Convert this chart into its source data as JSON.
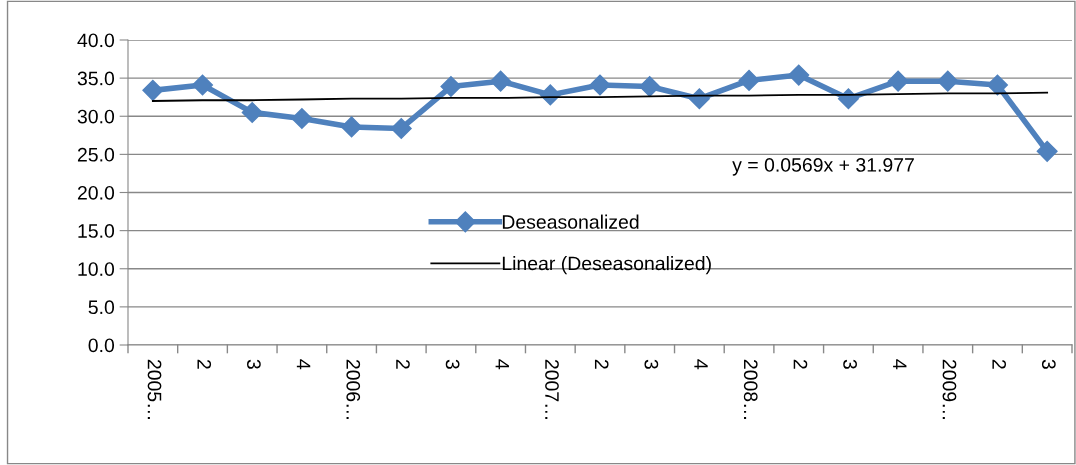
{
  "chart_data": {
    "type": "line",
    "categories": [
      "2005…",
      "2",
      "3",
      "4",
      "2006…",
      "2",
      "3",
      "4",
      "2007…",
      "2",
      "3",
      "4",
      "2008…",
      "2",
      "3",
      "4",
      "2009…",
      "2",
      "3"
    ],
    "series": [
      {
        "name": "Deseasonalized",
        "color": "#4f81bd",
        "marker": "diamond",
        "values": [
          33.4,
          34.1,
          30.5,
          29.7,
          28.6,
          28.4,
          33.9,
          34.6,
          32.8,
          34.1,
          33.9,
          32.3,
          34.7,
          35.4,
          32.3,
          34.6,
          34.6,
          34.1,
          25.4
        ]
      },
      {
        "name": "Linear (Deseasonalized)",
        "color": "#000000",
        "marker": "none",
        "values": [
          32.0,
          32.1,
          32.1,
          32.2,
          32.3,
          32.3,
          32.4,
          32.4,
          32.5,
          32.5,
          32.6,
          32.7,
          32.7,
          32.8,
          32.8,
          32.9,
          33.0,
          33.0,
          33.1
        ]
      }
    ],
    "annotations": [
      "y = 0.0569x + 31.977"
    ],
    "ylim": [
      0,
      40
    ],
    "yticks": [
      {
        "value": 0,
        "label": "0.0"
      },
      {
        "value": 5,
        "label": "5.0"
      },
      {
        "value": 10,
        "label": "10.0"
      },
      {
        "value": 15,
        "label": "15.0"
      },
      {
        "value": 20,
        "label": "20.0"
      },
      {
        "value": 25,
        "label": "25.0"
      },
      {
        "value": 30,
        "label": "30.0"
      },
      {
        "value": 35,
        "label": "35.0"
      },
      {
        "value": 40,
        "label": "40.0"
      }
    ],
    "grid": "y",
    "legend": "center"
  }
}
